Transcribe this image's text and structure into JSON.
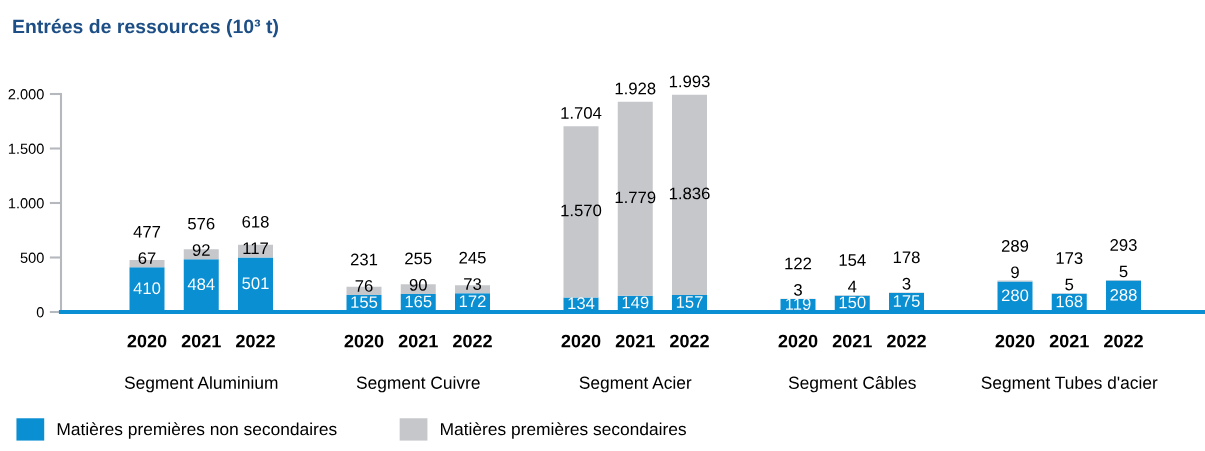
{
  "chart_data": {
    "type": "bar",
    "title": "Entrées de ressources (10³ t)",
    "categories": [
      "2020",
      "2021",
      "2022",
      null,
      "2020",
      "2021",
      "2022",
      null,
      "2020",
      "2021",
      "2022",
      null,
      "2020",
      "2021",
      "2022",
      null,
      "2020",
      "2021",
      "2022"
    ],
    "series": [
      {
        "name": "Matières premières non secondaires",
        "color": "#0a8fd2",
        "values": [
          410,
          484,
          501,
          null,
          155,
          165,
          172,
          null,
          134,
          149,
          157,
          null,
          119,
          150,
          175,
          null,
          280,
          168,
          288
        ],
        "value_labels": [
          "410",
          "484",
          "501",
          null,
          "155",
          "165",
          "172",
          null,
          "134",
          "149",
          "157",
          null,
          "119",
          "150",
          "175",
          null,
          "280",
          "168",
          "288"
        ]
      },
      {
        "name": "Matières premières secondaires",
        "color": "#c6c7cb",
        "values": [
          67,
          92,
          117,
          null,
          76,
          90,
          73,
          null,
          1570,
          1779,
          1836,
          null,
          3,
          4,
          3,
          null,
          9,
          5,
          5
        ],
        "value_labels": [
          "67",
          "92",
          "117",
          null,
          "76",
          "90",
          "73",
          null,
          "1.570",
          "1.779",
          "1.836",
          null,
          "3",
          "4",
          "3",
          null,
          "9",
          "5",
          "5"
        ]
      }
    ],
    "totals": [
      "477",
      "576",
      "618",
      null,
      "231",
      "255",
      "245",
      null,
      "1.704",
      "1.928",
      "1.993",
      null,
      "122",
      "154",
      "178",
      null,
      "289",
      "173",
      "293"
    ],
    "stacked": true,
    "ylim": [
      0,
      2000
    ],
    "yticks": [
      0,
      500,
      {
        "value": 1000,
        "label": "1.000"
      },
      {
        "value": 1500,
        "label": "1.500"
      },
      {
        "value": 2000,
        "label": "2.000"
      }
    ],
    "annotations": [
      "Segment Aluminium",
      "Segment Cuivre",
      "Segment Acier",
      "Segment Câbles",
      "Segment Tubes d'acier"
    ],
    "legend": "bottom left"
  }
}
